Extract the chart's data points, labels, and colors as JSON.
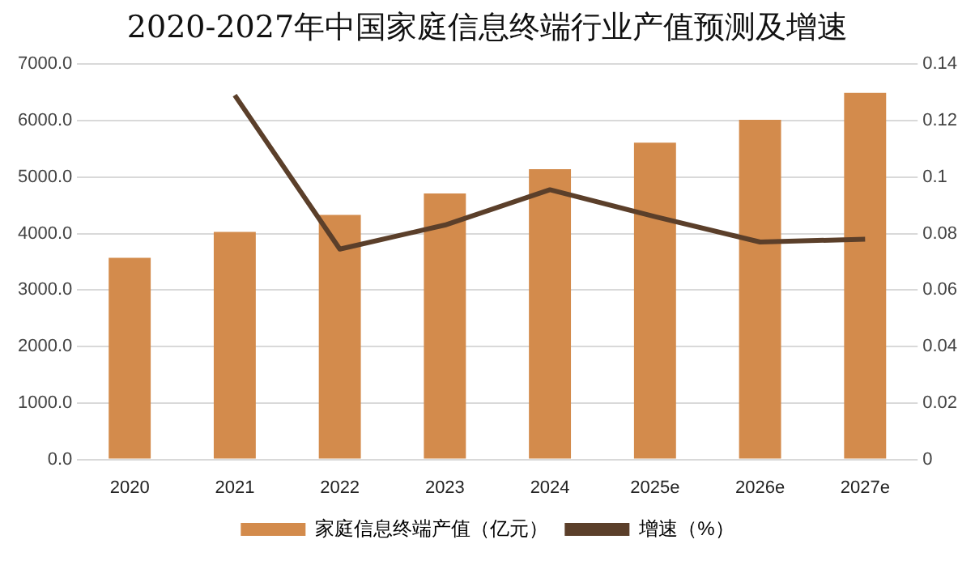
{
  "chart_data": {
    "type": "bar",
    "title": "2020-2027年中国家庭信息终端行业产值预测及增速",
    "categories": [
      "2020",
      "2021",
      "2022",
      "2023",
      "2024",
      "2025e",
      "2026e",
      "2027e"
    ],
    "series": [
      {
        "name": "家庭信息终端产值（亿元）",
        "color": "#d38b4c",
        "values": [
          3570,
          4030,
          4330,
          4710,
          5140,
          5610,
          6015,
          6490
        ]
      },
      {
        "name": "增速（%）",
        "type": "line",
        "axis": "y2",
        "color": "#5b3f2a",
        "values": [
          null,
          0.129,
          0.0745,
          0.083,
          0.0955,
          0.086,
          0.077,
          0.078
        ]
      }
    ],
    "ylim": [
      0,
      7000
    ],
    "yticks": [
      {
        "value": 0,
        "label": "0.0"
      },
      {
        "value": 1000,
        "label": "1000.0"
      },
      {
        "value": 2000,
        "label": "2000.0"
      },
      {
        "value": 3000,
        "label": "3000.0"
      },
      {
        "value": 4000,
        "label": "4000.0"
      },
      {
        "value": 5000,
        "label": "5000.0"
      },
      {
        "value": 6000,
        "label": "6000.0"
      },
      {
        "value": 7000,
        "label": "7000.0"
      }
    ],
    "y2lim": [
      0,
      0.14
    ],
    "y2ticks": [
      0,
      0.02,
      0.04,
      0.06,
      0.08,
      0.1,
      0.12,
      0.14
    ],
    "grid": "y",
    "legend": "bottom",
    "marker": "none"
  }
}
